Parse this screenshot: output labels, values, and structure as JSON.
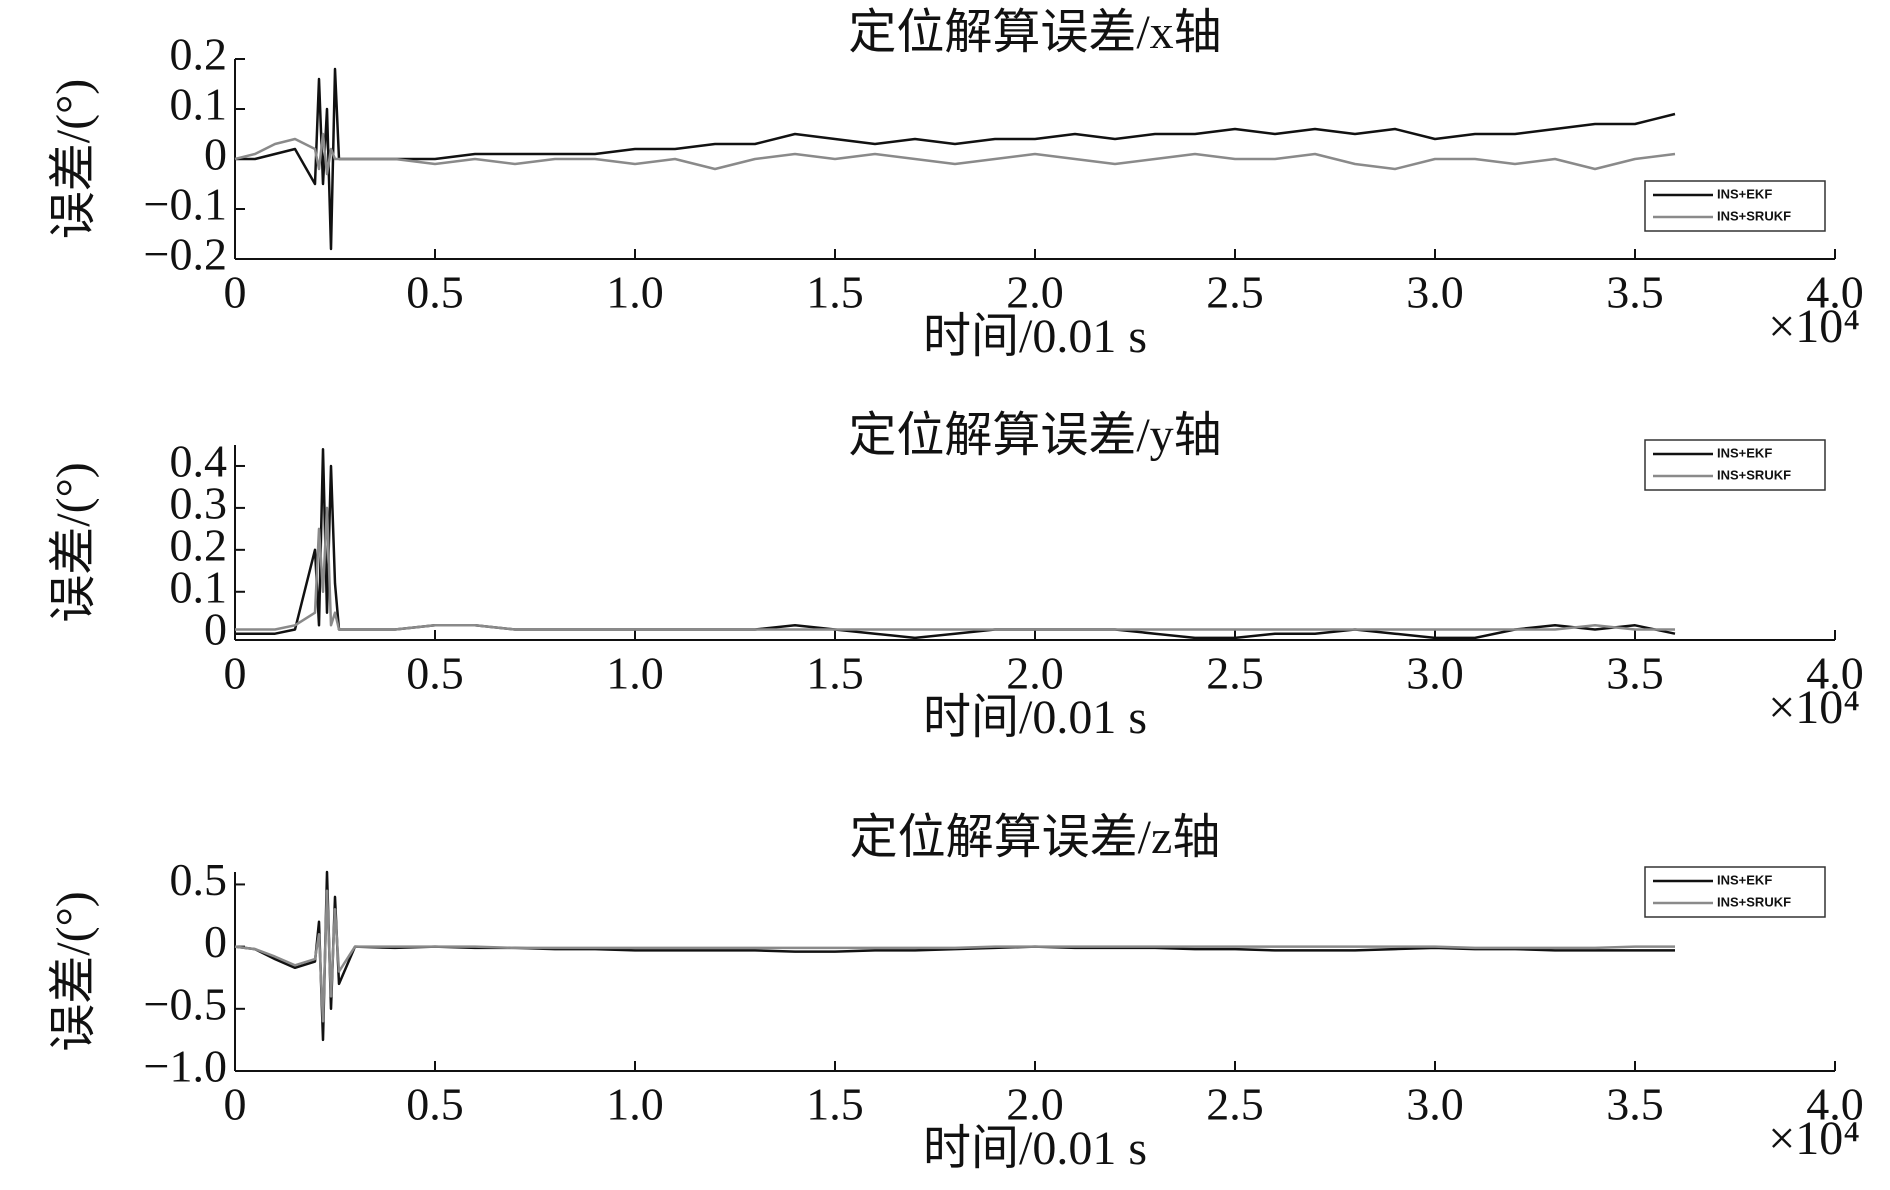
{
  "chart_data": [
    {
      "type": "line",
      "title": "定位解算误差/x轴",
      "x_label": "时间/0.01 s",
      "x_multiplier": "×10⁴",
      "y_label": "误差/(°)",
      "x": [
        0,
        0.05,
        0.1,
        0.15,
        0.2,
        0.21,
        0.22,
        0.23,
        0.24,
        0.25,
        0.26,
        0.3,
        0.4,
        0.5,
        0.6,
        0.7,
        0.8,
        0.9,
        1.0,
        1.1,
        1.2,
        1.3,
        1.4,
        1.5,
        1.6,
        1.7,
        1.8,
        1.9,
        2.0,
        2.1,
        2.2,
        2.3,
        2.4,
        2.5,
        2.6,
        2.7,
        2.8,
        2.9,
        3.0,
        3.1,
        3.2,
        3.3,
        3.4,
        3.5,
        3.6
      ],
      "series": [
        {
          "name": "INS+EKF",
          "color": "#111111",
          "values": [
            0,
            0,
            0.01,
            0.02,
            -0.05,
            0.16,
            -0.05,
            0.1,
            -0.18,
            0.18,
            0,
            0,
            0,
            0,
            0.01,
            0.01,
            0.01,
            0.01,
            0.02,
            0.02,
            0.03,
            0.03,
            0.05,
            0.04,
            0.03,
            0.04,
            0.03,
            0.04,
            0.04,
            0.05,
            0.04,
            0.05,
            0.05,
            0.06,
            0.05,
            0.06,
            0.05,
            0.06,
            0.04,
            0.05,
            0.05,
            0.06,
            0.07,
            0.07,
            0.09
          ]
        },
        {
          "name": "INS+SRUKF",
          "color": "#8a8a8a",
          "values": [
            0,
            0.01,
            0.03,
            0.04,
            0.02,
            -0.02,
            0.05,
            -0.03,
            0.02,
            0,
            0,
            0,
            0,
            -0.01,
            0,
            -0.01,
            0,
            0,
            -0.01,
            0,
            -0.02,
            0,
            0.01,
            0,
            0.01,
            0,
            -0.01,
            0,
            0.01,
            0,
            -0.01,
            0,
            0.01,
            0,
            0,
            0.01,
            -0.01,
            -0.02,
            0,
            0,
            -0.01,
            0,
            -0.02,
            0,
            0.01
          ]
        }
      ],
      "xlim": [
        0,
        4
      ],
      "xticks": [
        0,
        0.5,
        {
          "value": 1,
          "label": "1.0"
        },
        1.5,
        {
          "value": 2,
          "label": "2.0"
        },
        2.5,
        {
          "value": 3,
          "label": "3.0"
        },
        3.5,
        {
          "value": 4,
          "label": "4.0"
        }
      ],
      "ylim": [
        -0.2,
        0.2
      ],
      "yticks": [
        {
          "value": -0.2,
          "label": "−0.2"
        },
        {
          "value": -0.1,
          "label": "−0.1"
        },
        0,
        0.1,
        0.2
      ],
      "legend": "lower right"
    },
    {
      "type": "line",
      "title": "定位解算误差/y轴",
      "x_label": "时间/0.01 s",
      "x_multiplier": "×10⁴",
      "y_label": "误差/(°)",
      "x": [
        0,
        0.05,
        0.1,
        0.15,
        0.2,
        0.21,
        0.22,
        0.23,
        0.24,
        0.25,
        0.26,
        0.3,
        0.4,
        0.5,
        0.6,
        0.7,
        0.8,
        0.9,
        1.0,
        1.1,
        1.2,
        1.3,
        1.4,
        1.5,
        1.6,
        1.7,
        1.8,
        1.9,
        2.0,
        2.1,
        2.2,
        2.3,
        2.4,
        2.5,
        2.6,
        2.7,
        2.8,
        2.9,
        3.0,
        3.1,
        3.2,
        3.3,
        3.4,
        3.5,
        3.6
      ],
      "series": [
        {
          "name": "INS+EKF",
          "color": "#111111",
          "values": [
            0,
            0,
            0,
            0.01,
            0.2,
            0.02,
            0.44,
            0.05,
            0.4,
            0.12,
            0.01,
            0.01,
            0.01,
            0.02,
            0.02,
            0.01,
            0.01,
            0.01,
            0.01,
            0.01,
            0.01,
            0.01,
            0.02,
            0.01,
            0,
            -0.01,
            0,
            0.01,
            0.01,
            0.01,
            0.01,
            0,
            -0.01,
            -0.01,
            0,
            0,
            0.01,
            0,
            -0.01,
            -0.01,
            0.01,
            0.02,
            0.01,
            0.02,
            0
          ]
        },
        {
          "name": "INS+SRUKF",
          "color": "#8a8a8a",
          "values": [
            0.01,
            0.01,
            0.01,
            0.02,
            0.05,
            0.25,
            0.1,
            0.3,
            0.02,
            0.05,
            0.01,
            0.01,
            0.01,
            0.02,
            0.02,
            0.01,
            0.01,
            0.01,
            0.01,
            0.01,
            0.01,
            0.01,
            0.01,
            0.01,
            0.01,
            0.01,
            0.01,
            0.01,
            0.01,
            0.01,
            0.01,
            0.01,
            0.01,
            0.01,
            0.01,
            0.01,
            0.01,
            0.01,
            0.01,
            0.01,
            0.01,
            0.01,
            0.02,
            0.01,
            0.01
          ]
        }
      ],
      "xlim": [
        0,
        4
      ],
      "xticks": [
        0,
        0.5,
        {
          "value": 1,
          "label": "1.0"
        },
        1.5,
        {
          "value": 2,
          "label": "2.0"
        },
        2.5,
        {
          "value": 3,
          "label": "3.0"
        },
        3.5,
        {
          "value": 4,
          "label": "4.0"
        }
      ],
      "ylim": [
        -0.015,
        0.45
      ],
      "yticks": [
        0,
        0.1,
        0.2,
        0.3,
        0.4
      ],
      "legend": "upper right"
    },
    {
      "type": "line",
      "title": "定位解算误差/z轴",
      "x_label": "时间/0.01 s",
      "x_multiplier": "×10⁴",
      "y_label": "误差/(°)",
      "x": [
        0,
        0.05,
        0.1,
        0.15,
        0.2,
        0.21,
        0.22,
        0.23,
        0.24,
        0.25,
        0.26,
        0.3,
        0.4,
        0.5,
        0.6,
        0.7,
        0.8,
        0.9,
        1.0,
        1.1,
        1.2,
        1.3,
        1.4,
        1.5,
        1.6,
        1.7,
        1.8,
        1.9,
        2.0,
        2.1,
        2.2,
        2.3,
        2.4,
        2.5,
        2.6,
        2.7,
        2.8,
        2.9,
        3.0,
        3.1,
        3.2,
        3.3,
        3.4,
        3.5,
        3.6
      ],
      "series": [
        {
          "name": "INS+EKF",
          "color": "#111111",
          "values": [
            0,
            -0.02,
            -0.1,
            -0.17,
            -0.12,
            0.2,
            -0.75,
            0.6,
            -0.5,
            0.4,
            -0.3,
            0,
            -0.01,
            0,
            -0.01,
            -0.01,
            -0.02,
            -0.02,
            -0.03,
            -0.03,
            -0.03,
            -0.03,
            -0.04,
            -0.04,
            -0.03,
            -0.03,
            -0.02,
            -0.01,
            0,
            -0.01,
            -0.01,
            -0.01,
            -0.02,
            -0.02,
            -0.03,
            -0.03,
            -0.03,
            -0.02,
            -0.01,
            -0.02,
            -0.02,
            -0.03,
            -0.03,
            -0.03,
            -0.03
          ]
        },
        {
          "name": "INS+SRUKF",
          "color": "#8a8a8a",
          "values": [
            0,
            -0.02,
            -0.08,
            -0.15,
            -0.1,
            0.1,
            -0.6,
            0.45,
            -0.4,
            0.3,
            -0.2,
            0,
            0,
            0,
            0,
            -0.01,
            -0.01,
            -0.01,
            -0.01,
            -0.01,
            -0.01,
            -0.01,
            -0.01,
            -0.01,
            -0.01,
            -0.01,
            -0.01,
            0,
            0,
            0,
            0,
            0,
            0,
            0,
            0,
            0,
            0,
            0,
            0,
            -0.01,
            -0.01,
            -0.01,
            -0.01,
            0,
            0
          ]
        }
      ],
      "xlim": [
        0,
        4
      ],
      "xticks": [
        0,
        0.5,
        {
          "value": 1,
          "label": "1.0"
        },
        1.5,
        {
          "value": 2,
          "label": "2.0"
        },
        2.5,
        {
          "value": 3,
          "label": "3.0"
        },
        3.5,
        {
          "value": 4,
          "label": "4.0"
        }
      ],
      "ylim": [
        -1,
        0.6
      ],
      "yticks": [
        {
          "value": -1,
          "label": "−1.0"
        },
        {
          "value": -0.5,
          "label": "−0.5"
        },
        0,
        0.5
      ],
      "legend": "upper right"
    }
  ]
}
